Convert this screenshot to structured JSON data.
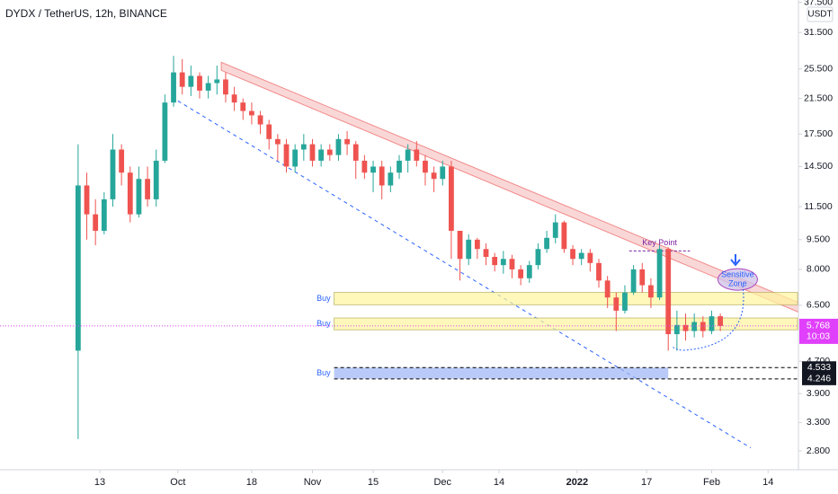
{
  "chart_data": {
    "type": "candlestick",
    "title": "DYDX / TetherUS, 12h, BINANCE",
    "currency": "USDT",
    "log_scale": true,
    "up_color": "#26a69a",
    "down_color": "#ef5350",
    "x": [
      "2021-09-08",
      "2021-09-10",
      "2021-09-12",
      "2021-09-14",
      "2021-09-16",
      "2021-09-18",
      "2021-09-20",
      "2021-09-22",
      "2021-09-24",
      "2021-09-26",
      "2021-09-28",
      "2021-09-30",
      "2021-10-02",
      "2021-10-04",
      "2021-10-06",
      "2021-10-08",
      "2021-10-10",
      "2021-10-12",
      "2021-10-14",
      "2021-10-16",
      "2021-10-18",
      "2021-10-20",
      "2021-10-22",
      "2021-10-24",
      "2021-10-26",
      "2021-10-28",
      "2021-10-30",
      "2021-11-01",
      "2021-11-03",
      "2021-11-05",
      "2021-11-07",
      "2021-11-09",
      "2021-11-11",
      "2021-11-13",
      "2021-11-15",
      "2021-11-17",
      "2021-11-19",
      "2021-11-21",
      "2021-11-23",
      "2021-11-25",
      "2021-11-27",
      "2021-11-29",
      "2021-12-01",
      "2021-12-03",
      "2021-12-05",
      "2021-12-07",
      "2021-12-09",
      "2021-12-11",
      "2021-12-13",
      "2021-12-15",
      "2021-12-17",
      "2021-12-19",
      "2021-12-21",
      "2021-12-23",
      "2021-12-25",
      "2021-12-27",
      "2021-12-29",
      "2021-12-31",
      "2022-01-02",
      "2022-01-04",
      "2022-01-06",
      "2022-01-08",
      "2022-01-10",
      "2022-01-12",
      "2022-01-14",
      "2022-01-16",
      "2022-01-18",
      "2022-01-20",
      "2022-01-22",
      "2022-01-24",
      "2022-01-26",
      "2022-01-28",
      "2022-01-30",
      "2022-02-01",
      "2022-02-03"
    ],
    "open": [
      5,
      13,
      11,
      10,
      12,
      16,
      14,
      11,
      13.5,
      12,
      15,
      21,
      25,
      23,
      24.5,
      22.5,
      23.5,
      24,
      22,
      21,
      20,
      19.5,
      18.5,
      17,
      16.5,
      14.5,
      16,
      16.5,
      15,
      16,
      15.5,
      17,
      16.5,
      15,
      14,
      14.5,
      13,
      14,
      15,
      16,
      15,
      14,
      13.5,
      14.5,
      10,
      8.5,
      9.5,
      9,
      8.6,
      8.2,
      8.5,
      8,
      7.6,
      8.2,
      9,
      9.6,
      10.5,
      9,
      8.5,
      8.8,
      8.3,
      7.5,
      6.8,
      6.3,
      7,
      8,
      7.3,
      6.8,
      9,
      5.5,
      5.8,
      5.6,
      5.9,
      5.6,
      6.1
    ],
    "high": [
      16.5,
      14,
      12,
      12.5,
      17.5,
      16.5,
      14.5,
      14.5,
      14.5,
      16,
      22,
      27.5,
      27,
      26,
      25,
      24.5,
      26,
      25,
      23,
      21.5,
      21,
      20,
      19,
      17.5,
      17,
      16.5,
      17.5,
      17,
      16.5,
      16.5,
      17.5,
      17.8,
      16.8,
      15.5,
      15,
      15,
      14.5,
      15.5,
      16.5,
      16.8,
      15.5,
      14.5,
      15,
      15,
      10,
      9.8,
      9.6,
      9.3,
      8.8,
      8.9,
      8.7,
      8.2,
      8.4,
      9.3,
      10,
      11,
      10.6,
      9.2,
      9,
      9,
      8.5,
      7.7,
      7,
      7.3,
      8.2,
      8.3,
      7.6,
      9.2,
      9.1,
      6.3,
      6.2,
      6.2,
      6.1,
      6.3,
      6.2
    ],
    "low": [
      3,
      9.5,
      9.2,
      9.8,
      11.5,
      13,
      10.5,
      10.8,
      11.5,
      11.5,
      14.8,
      20.5,
      22,
      21.8,
      21.5,
      21.5,
      22,
      21,
      20,
      19,
      18.5,
      17.5,
      16,
      15,
      14,
      14,
      15,
      14.5,
      14.5,
      15,
      15,
      15.5,
      13.5,
      13.5,
      12.5,
      12,
      12.5,
      13.5,
      14,
      14.5,
      13,
      12.5,
      13,
      8.5,
      7.5,
      8.2,
      8.5,
      8.2,
      7.9,
      7.8,
      7.6,
      7.3,
      7.4,
      8,
      8.8,
      9.3,
      8.8,
      8.2,
      8.2,
      7.9,
      7.2,
      6.4,
      5.6,
      6.2,
      6.9,
      7,
      6.4,
      6.7,
      5,
      5,
      5.3,
      5.4,
      5.4,
      5.5,
      5.6
    ],
    "close": [
      13,
      11,
      10,
      12,
      16,
      14,
      11,
      13.5,
      12,
      15,
      21,
      25,
      23,
      24.5,
      22.5,
      23.5,
      24,
      22,
      21,
      20,
      19.5,
      18.5,
      17,
      16.5,
      14.5,
      16,
      16.5,
      15,
      16,
      15.5,
      17,
      16.5,
      15,
      14,
      14.5,
      13,
      14,
      15,
      16,
      15,
      14,
      13.5,
      14.5,
      10,
      8.5,
      9.5,
      9,
      8.6,
      8.2,
      8.5,
      8,
      7.6,
      8.2,
      9,
      9.6,
      10.5,
      9,
      8.5,
      8.8,
      8.3,
      7.5,
      6.8,
      6.3,
      7,
      8,
      7.3,
      6.8,
      9,
      5.5,
      5.8,
      5.6,
      5.9,
      5.6,
      6.1,
      5.768
    ],
    "xlim": [
      "2021-08-21",
      "2022-02-21"
    ],
    "xticks": [
      {
        "value": "2021-09-13",
        "label": "13"
      },
      {
        "value": "2021-10-01",
        "label": "Oct"
      },
      {
        "value": "2021-10-18",
        "label": "18"
      },
      {
        "value": "2021-11-01",
        "label": "Nov"
      },
      {
        "value": "2021-11-15",
        "label": "15"
      },
      {
        "value": "2021-12-01",
        "label": "Dec"
      },
      {
        "value": "2021-12-14",
        "label": "14"
      },
      {
        "value": "2022-01-01",
        "label": "2022"
      },
      {
        "value": "2022-01-17",
        "label": "17"
      },
      {
        "value": "2022-02-01",
        "label": "Feb"
      },
      {
        "value": "2022-02-14",
        "label": "14"
      }
    ],
    "ylim": [
      2.55,
      38
    ],
    "yticks": [
      {
        "value": 37.5,
        "label": "37.500"
      },
      {
        "value": 31.5,
        "label": "31.500"
      },
      {
        "value": 25.5,
        "label": "25.500"
      },
      {
        "value": 21.5,
        "label": "21.500"
      },
      {
        "value": 17.5,
        "label": "17.500"
      },
      {
        "value": 14.5,
        "label": "14.500"
      },
      {
        "value": 11.5,
        "label": "11.500"
      },
      {
        "value": 9.5,
        "label": "9.500"
      },
      {
        "value": 8,
        "label": "8.000"
      },
      {
        "value": 6.5,
        "label": "6.500"
      },
      {
        "value": 4.7,
        "label": "4.700"
      },
      {
        "value": 3.9,
        "label": "3.900"
      },
      {
        "value": 3.3,
        "label": "3.300"
      },
      {
        "value": 2.8,
        "label": "2.800"
      }
    ],
    "last_price_label": "5.768",
    "countdown": "10:03",
    "last_price_color": "#e040fb",
    "levels": [
      {
        "value": 4.533,
        "label": "4.533"
      },
      {
        "value": 4.246,
        "label": "4.246"
      }
    ],
    "levels_start": "2022-01-22",
    "trend_band": {
      "start": "2021-10-11",
      "end": "2022-02-21",
      "start_top": 26.5,
      "start_bottom": 25.3,
      "end_top": 6.6,
      "end_bottom": 6.25,
      "color": "#f28b8b"
    },
    "support_line": {
      "start": "2021-10-01",
      "end": "2022-02-10",
      "start_price": 21.2,
      "end_price": 2.85,
      "color": "#2962ff"
    },
    "zones": [
      {
        "label": "Buy",
        "start": "2021-11-06",
        "top": 7.0,
        "bottom": 6.52,
        "color": "#fff59d"
      },
      {
        "label": "Buy",
        "start": "2021-11-06",
        "top": 6.04,
        "bottom": 5.64,
        "color": "#fff59d"
      },
      {
        "label": "Buy",
        "start": "2021-11-06",
        "end": "2022-01-22",
        "top": 4.53,
        "bottom": 4.25,
        "color": "#9db4f5"
      }
    ],
    "key_point": {
      "label": "Key Point",
      "start": "2022-01-13",
      "end": "2022-01-27",
      "price": 8.9
    },
    "sensitive_zone": {
      "lines": [
        "Sensitive",
        "Zone"
      ],
      "date": "2022-02-07",
      "price": 7.55
    }
  }
}
